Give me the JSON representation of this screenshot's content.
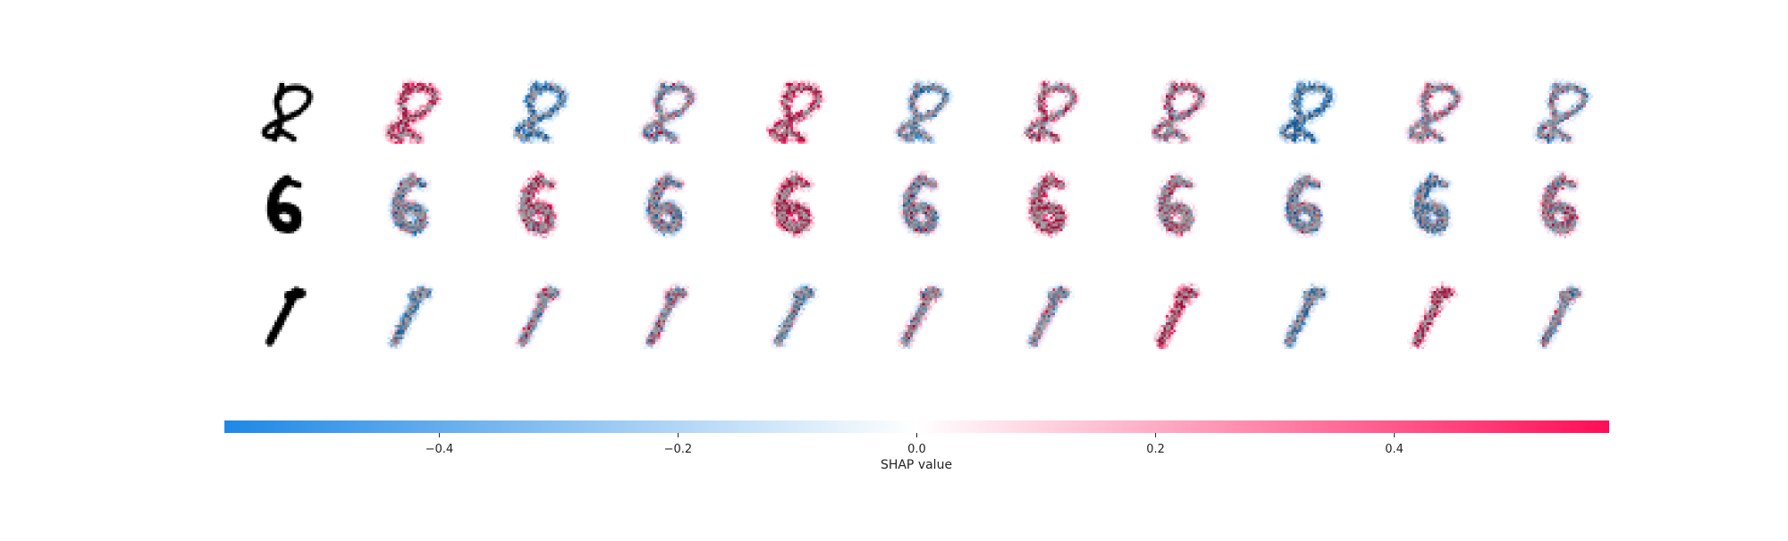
{
  "chart_data": {
    "type": "heatmap",
    "rows": [
      {
        "digit": "8",
        "shap_images": 10
      },
      {
        "digit": "6",
        "shap_images": 10
      },
      {
        "digit": "1",
        "shap_images": 10
      }
    ],
    "colorbar": {
      "label": "SHAP value",
      "range": [
        -0.58,
        0.58
      ],
      "ticks": [
        -0.4,
        -0.2,
        0.0,
        0.2,
        0.4
      ],
      "tick_labels": [
        "−0.4",
        "−0.2",
        "0.0",
        "0.2",
        "0.4"
      ],
      "colors": {
        "negative": "#1e88e5",
        "zero": "#ffffff",
        "positive": "#ff0d57"
      }
    }
  }
}
